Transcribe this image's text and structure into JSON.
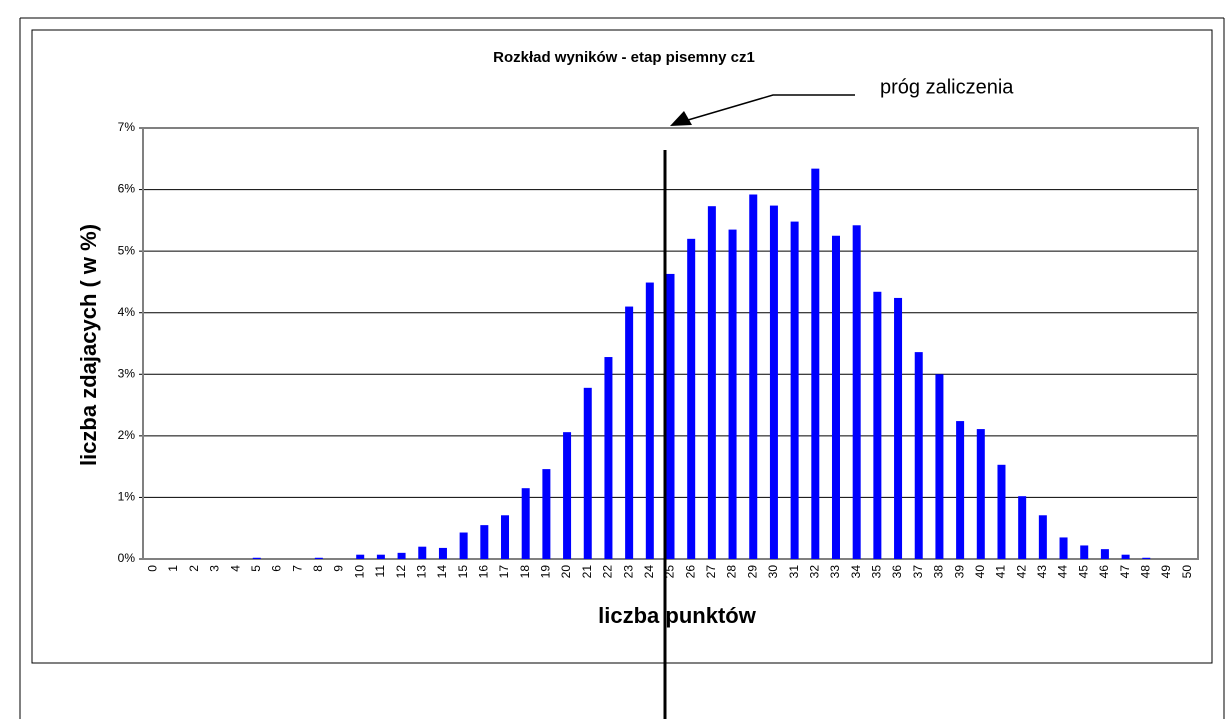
{
  "chart_data": {
    "type": "bar",
    "title": "Rozkład wyników - etap pisemny cz1",
    "annotation": "próg zaliczenia",
    "x_label": "liczba punktów",
    "y_label": "liczba zdajacych  ( w %)",
    "categories": [
      "0",
      "1",
      "2",
      "3",
      "4",
      "5",
      "6",
      "7",
      "8",
      "9",
      "10",
      "11",
      "12",
      "13",
      "14",
      "15",
      "16",
      "17",
      "18",
      "19",
      "20",
      "21",
      "22",
      "23",
      "24",
      "25",
      "26",
      "27",
      "28",
      "29",
      "30",
      "31",
      "32",
      "33",
      "34",
      "35",
      "36",
      "37",
      "38",
      "39",
      "40",
      "41",
      "42",
      "43",
      "44",
      "45",
      "46",
      "47",
      "48",
      "49",
      "50"
    ],
    "values": [
      0,
      0,
      0,
      0,
      0,
      0.02,
      0,
      0,
      0.02,
      0,
      0.07,
      0.07,
      0.1,
      0.2,
      0.18,
      0.43,
      0.55,
      0.71,
      1.15,
      1.46,
      2.06,
      2.78,
      3.28,
      4.1,
      4.49,
      4.63,
      5.2,
      5.73,
      5.35,
      5.92,
      5.74,
      5.48,
      6.34,
      5.25,
      5.42,
      4.34,
      4.24,
      3.36,
      3.0,
      2.24,
      2.11,
      1.53,
      1.02,
      0.71,
      0.35,
      0.22,
      0.16,
      0.07,
      0.02,
      0,
      0
    ],
    "color": "#0000ff",
    "ylim": [
      0,
      7
    ],
    "yticks": [
      {
        "value": 0,
        "label": "0%"
      },
      {
        "value": 1,
        "label": "1%"
      },
      {
        "value": 2,
        "label": "2%"
      },
      {
        "value": 3,
        "label": "3%"
      },
      {
        "value": 4,
        "label": "4%"
      },
      {
        "value": 5,
        "label": "5%"
      },
      {
        "value": 6,
        "label": "6%"
      },
      {
        "value": 7,
        "label": "7%"
      }
    ],
    "grid": true
  }
}
